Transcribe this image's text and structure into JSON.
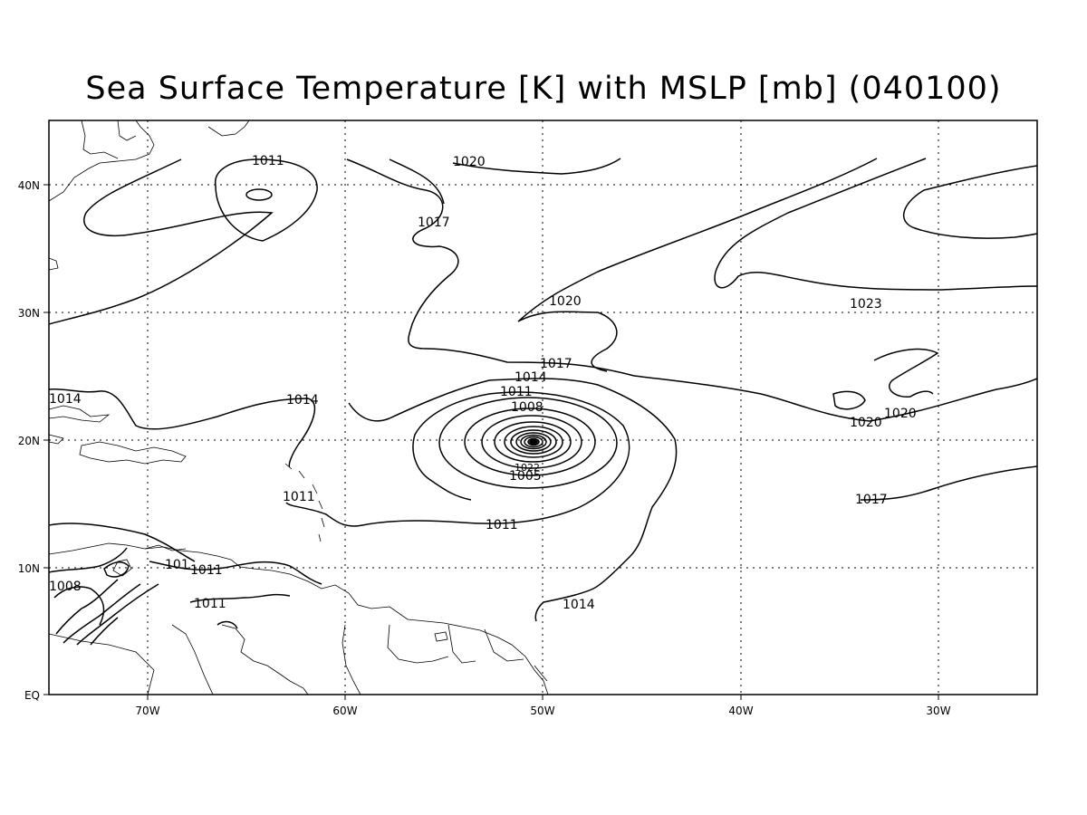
{
  "title": "Sea Surface Temperature [K] with MSLP [mb] (040100)",
  "axes": {
    "lon_ticks": [
      "70W",
      "60W",
      "50W",
      "40W",
      "30W"
    ],
    "lat_ticks": [
      "EQ",
      "10N",
      "20N",
      "30N",
      "40N"
    ]
  },
  "contour_labels": [
    "1011",
    "1020",
    "1017",
    "1020",
    "1023",
    "1017",
    "1014",
    "1011",
    "1008",
    "1014",
    "1014",
    "1020",
    "1020",
    "1005",
    "1011",
    "1011",
    "1017",
    "1014",
    "1008",
    "101",
    "1011",
    "1011",
    "1022"
  ],
  "colors": {
    "lines": "#000000",
    "background": "#ffffff",
    "grid": "#000000"
  }
}
